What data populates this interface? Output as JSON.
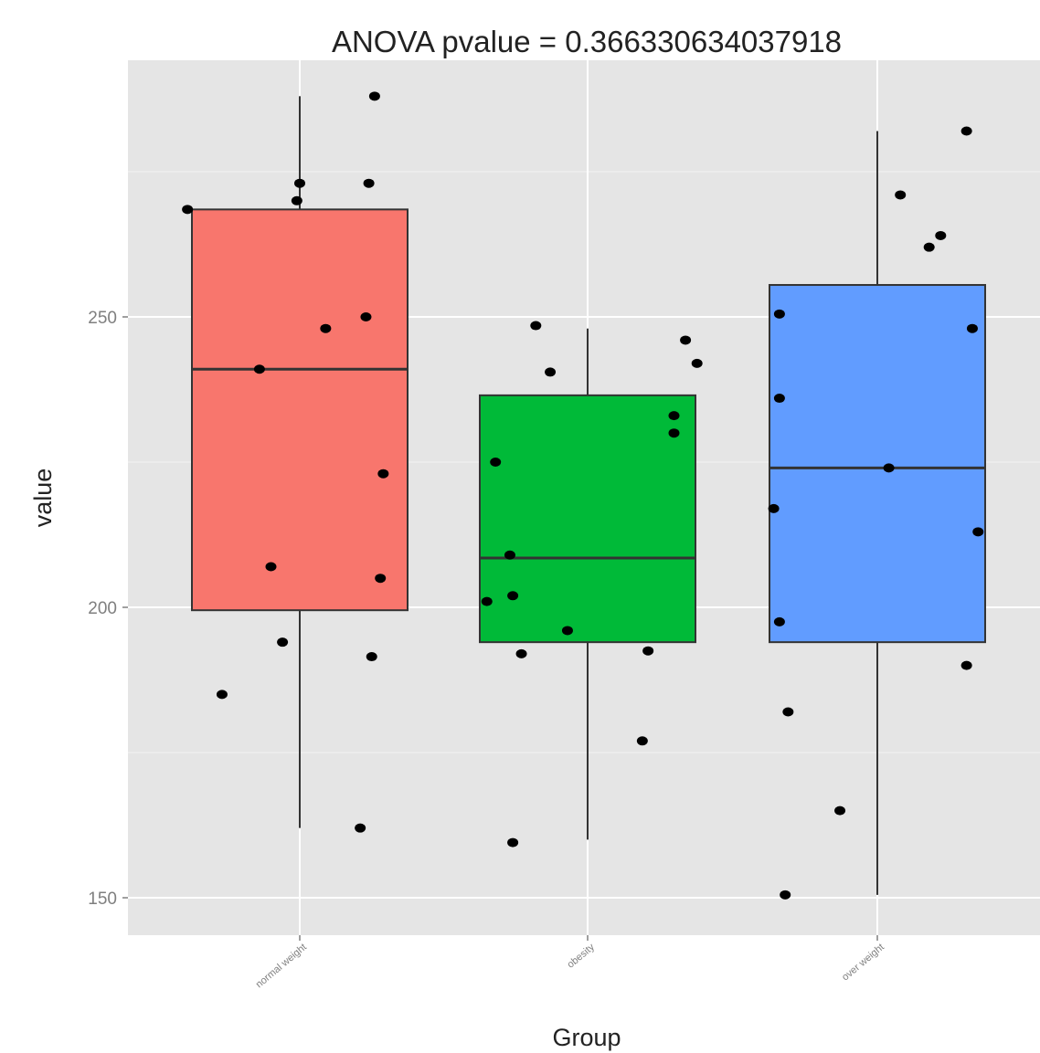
{
  "chart_data": {
    "type": "box",
    "title": "ANOVA pvalue = 0.366330634037918",
    "xlabel": "Group",
    "ylabel": "value",
    "ylim": [
      143,
      294
    ],
    "yticks": [
      150,
      200,
      250
    ],
    "ytick_labels": [
      "150",
      "200",
      "250"
    ],
    "grid": true,
    "legend": "none",
    "categories": [
      "normal weight",
      "obesity",
      "over weight"
    ],
    "colors": [
      "#F8766D",
      "#00BA38",
      "#619CFF"
    ],
    "boxes": [
      {
        "whisker_low": 162,
        "q1": 199.5,
        "median": 241,
        "q3": 268.5,
        "whisker_high": 288
      },
      {
        "whisker_low": 160,
        "q1": 194,
        "median": 208.5,
        "q3": 236.5,
        "whisker_high": 248
      },
      {
        "whisker_low": 150.5,
        "q1": 194,
        "median": 224,
        "q3": 255.5,
        "whisker_high": 282
      }
    ],
    "points": [
      {
        "group": 0,
        "jitter": -0.39,
        "value": 268.5
      },
      {
        "group": 0,
        "jitter": -0.27,
        "value": 185
      },
      {
        "group": 0,
        "jitter": -0.14,
        "value": 241
      },
      {
        "group": 0,
        "jitter": -0.1,
        "value": 207
      },
      {
        "group": 0,
        "jitter": -0.06,
        "value": 194
      },
      {
        "group": 0,
        "jitter": -0.01,
        "value": 270
      },
      {
        "group": 0,
        "jitter": 0.0,
        "value": 273
      },
      {
        "group": 0,
        "jitter": 0.09,
        "value": 248
      },
      {
        "group": 0,
        "jitter": 0.21,
        "value": 162
      },
      {
        "group": 0,
        "jitter": 0.23,
        "value": 250
      },
      {
        "group": 0,
        "jitter": 0.24,
        "value": 273
      },
      {
        "group": 0,
        "jitter": 0.25,
        "value": 191.5
      },
      {
        "group": 0,
        "jitter": 0.26,
        "value": 288
      },
      {
        "group": 0,
        "jitter": 0.28,
        "value": 205
      },
      {
        "group": 0,
        "jitter": 0.29,
        "value": 223
      },
      {
        "group": 1,
        "jitter": -0.35,
        "value": 201
      },
      {
        "group": 1,
        "jitter": -0.32,
        "value": 225
      },
      {
        "group": 1,
        "jitter": -0.27,
        "value": 209
      },
      {
        "group": 1,
        "jitter": -0.26,
        "value": 159.5
      },
      {
        "group": 1,
        "jitter": -0.26,
        "value": 202
      },
      {
        "group": 1,
        "jitter": -0.23,
        "value": 192
      },
      {
        "group": 1,
        "jitter": -0.18,
        "value": 248.5
      },
      {
        "group": 1,
        "jitter": -0.13,
        "value": 240.5
      },
      {
        "group": 1,
        "jitter": -0.07,
        "value": 196
      },
      {
        "group": 1,
        "jitter": 0.19,
        "value": 177
      },
      {
        "group": 1,
        "jitter": 0.21,
        "value": 192.5
      },
      {
        "group": 1,
        "jitter": 0.3,
        "value": 230
      },
      {
        "group": 1,
        "jitter": 0.3,
        "value": 233
      },
      {
        "group": 1,
        "jitter": 0.34,
        "value": 246
      },
      {
        "group": 1,
        "jitter": 0.38,
        "value": 242
      },
      {
        "group": 2,
        "jitter": -0.36,
        "value": 217
      },
      {
        "group": 2,
        "jitter": -0.34,
        "value": 197.5
      },
      {
        "group": 2,
        "jitter": -0.34,
        "value": 250.5
      },
      {
        "group": 2,
        "jitter": -0.34,
        "value": 236
      },
      {
        "group": 2,
        "jitter": -0.32,
        "value": 150.5
      },
      {
        "group": 2,
        "jitter": -0.31,
        "value": 182
      },
      {
        "group": 2,
        "jitter": -0.13,
        "value": 165
      },
      {
        "group": 2,
        "jitter": 0.04,
        "value": 224
      },
      {
        "group": 2,
        "jitter": 0.08,
        "value": 271
      },
      {
        "group": 2,
        "jitter": 0.18,
        "value": 262
      },
      {
        "group": 2,
        "jitter": 0.22,
        "value": 264
      },
      {
        "group": 2,
        "jitter": 0.31,
        "value": 282
      },
      {
        "group": 2,
        "jitter": 0.31,
        "value": 190
      },
      {
        "group": 2,
        "jitter": 0.33,
        "value": 248
      },
      {
        "group": 2,
        "jitter": 0.35,
        "value": 213
      }
    ]
  }
}
